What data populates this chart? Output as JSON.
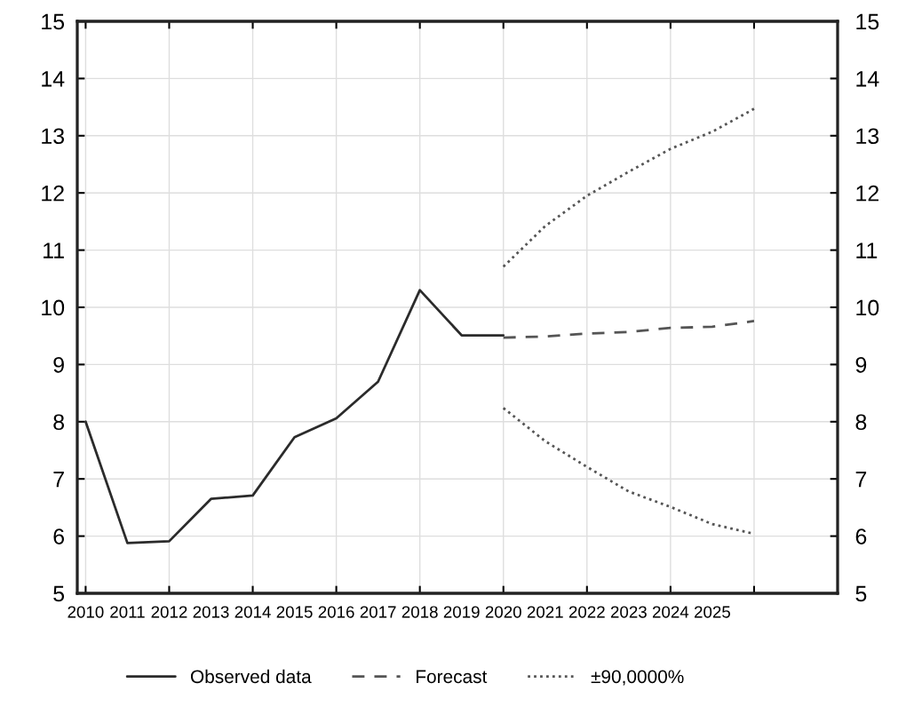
{
  "chart_data": {
    "type": "line",
    "series": [
      {
        "name": "Observed data",
        "color": "#2b2b2b",
        "line_style": "solid",
        "x": [
          2010,
          2011,
          2012,
          2013,
          2014,
          2015,
          2016,
          2017,
          2018,
          2019,
          2020
        ],
        "values": [
          8.0,
          5.88,
          5.91,
          6.65,
          6.71,
          7.73,
          8.06,
          8.7,
          10.3,
          9.51,
          9.51
        ]
      },
      {
        "name": "Forecast",
        "color": "#555555",
        "line_style": "dashed",
        "x": [
          2020,
          2021,
          2022,
          2023,
          2024,
          2025,
          2026
        ],
        "values": [
          9.47,
          9.49,
          9.54,
          9.57,
          9.64,
          9.66,
          9.76
        ]
      },
      {
        "name": "±90,0000%",
        "color": "#555555",
        "line_style": "dotted",
        "x": [
          2020,
          2021,
          2022,
          2023,
          2024,
          2025,
          2026
        ],
        "values": [
          10.71,
          11.42,
          11.95,
          12.37,
          12.77,
          13.07,
          13.47
        ]
      },
      {
        "color": "#555555",
        "line_style": "dotted",
        "x": [
          2020,
          2021,
          2022,
          2023,
          2024,
          2025,
          2026
        ],
        "values": [
          8.24,
          7.66,
          7.21,
          6.78,
          6.51,
          6.21,
          6.04
        ]
      }
    ],
    "xlim": [
      2009.8,
      2028
    ],
    "xticks": [
      2010,
      2011,
      2012,
      2013,
      2014,
      2015,
      2016,
      2017,
      2018,
      2019,
      2020,
      2021,
      2022,
      2023,
      2024,
      2025,
      {
        "value": 2026,
        "label": null
      }
    ],
    "ylim": [
      5,
      15
    ],
    "yticks": [
      5,
      6,
      7,
      8,
      9,
      10,
      11,
      12,
      13,
      14,
      15
    ],
    "y2lim": [
      5,
      15
    ],
    "y2ticks": [
      5,
      6,
      7,
      8,
      9,
      10,
      11,
      12,
      13,
      14,
      15
    ],
    "grid": true,
    "legend": "bottom"
  }
}
